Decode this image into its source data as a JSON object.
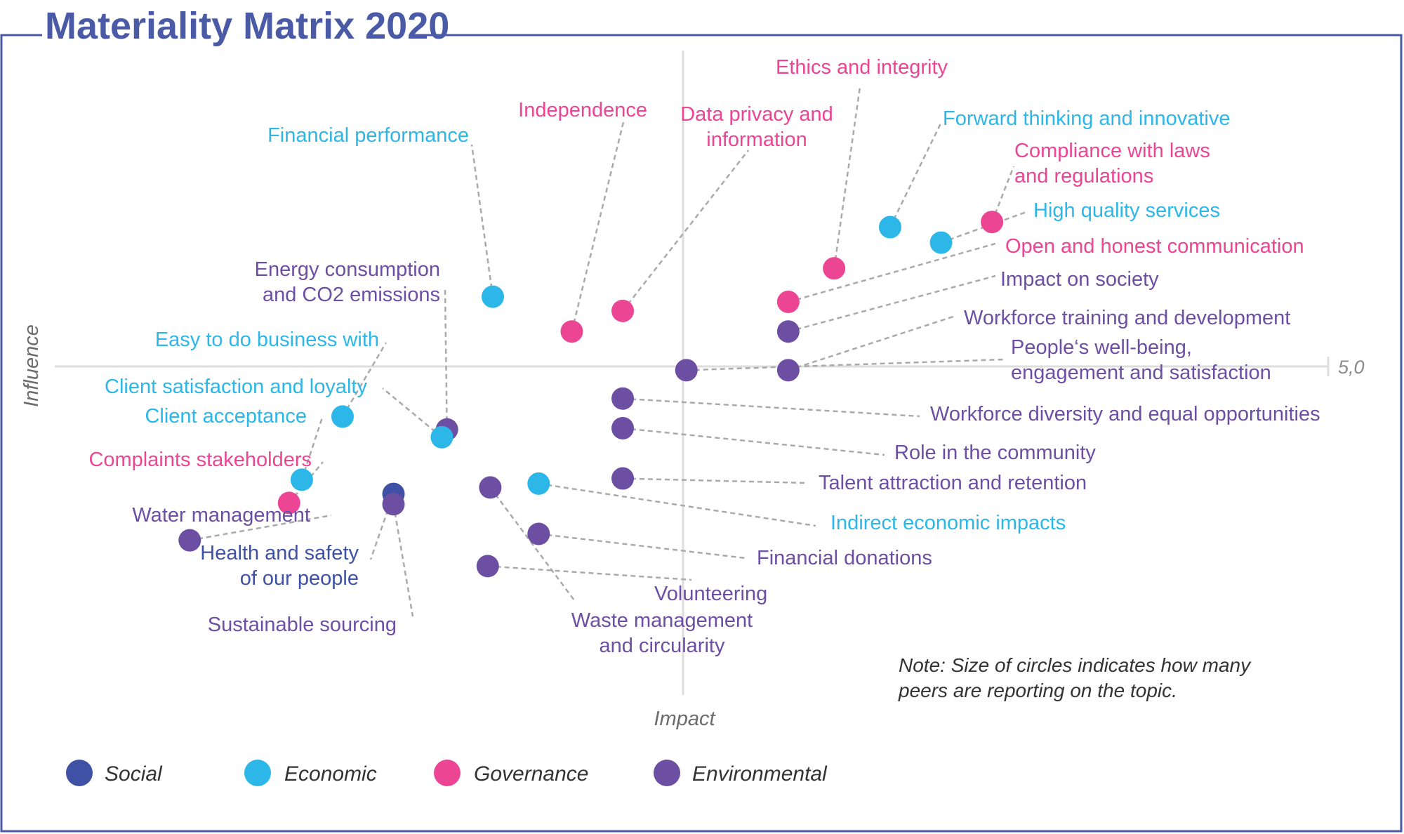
{
  "chart_data": {
    "type": "scatter",
    "title": "Materiality Matrix 2020",
    "xlabel": "Impact",
    "ylabel": "Influence",
    "tick_labels": [
      "5,0"
    ],
    "note": [
      "Note: Size of circles indicates how many",
      "peers are reporting on the topic."
    ],
    "grid": false,
    "legend_position": "bottom-left",
    "colors": {
      "Social": "#3f51a5",
      "Economic": "#2db7e8",
      "Governance": "#ec4594",
      "Environmental": "#6c4ea3"
    },
    "legend": [
      "Social",
      "Economic",
      "Governance",
      "Environmental"
    ],
    "x_range": [
      0,
      5
    ],
    "y_range": [
      0,
      5
    ],
    "points": [
      {
        "name": "Ethics and integrity",
        "category": "Governance",
        "x": 3.06,
        "y": 3.31,
        "label": [
          "Ethics and integrity"
        ]
      },
      {
        "name": "Forward thinking and innovative",
        "category": "Economic",
        "x": 3.28,
        "y": 3.63,
        "label": [
          "Forward thinking and innovative"
        ]
      },
      {
        "name": "Compliance with laws and regulations",
        "category": "Governance",
        "x": 3.68,
        "y": 3.67,
        "label": [
          "Compliance with laws",
          "and regulations"
        ]
      },
      {
        "name": "High quality services",
        "category": "Economic",
        "x": 3.48,
        "y": 3.51,
        "label": [
          "High quality services"
        ]
      },
      {
        "name": "Open and honest communication",
        "category": "Governance",
        "x": 2.88,
        "y": 3.05,
        "label": [
          "Open and honest communication"
        ]
      },
      {
        "name": "Impact on society",
        "category": "Environmental",
        "x": 2.88,
        "y": 2.82,
        "label": [
          "Impact on society"
        ]
      },
      {
        "name": "Workforce training and development",
        "category": "Environmental",
        "x": 2.88,
        "y": 2.52,
        "label": [
          "Workforce training and development"
        ]
      },
      {
        "name": "People's well-being, engagement and satisfaction",
        "category": "Environmental",
        "x": 2.48,
        "y": 2.52,
        "label": [
          "People‘s well-being,",
          "engagement and satisfaction"
        ]
      },
      {
        "name": "Workforce diversity and equal opportunities",
        "category": "Environmental",
        "x": 2.23,
        "y": 2.3,
        "label": [
          "Workforce diversity and equal opportunities"
        ]
      },
      {
        "name": "Role in the community",
        "category": "Environmental",
        "x": 2.23,
        "y": 2.07,
        "label": [
          "Role in the community"
        ]
      },
      {
        "name": "Talent attraction and retention",
        "category": "Environmental",
        "x": 2.23,
        "y": 1.68,
        "label": [
          "Talent attraction and retention"
        ]
      },
      {
        "name": "Indirect economic impacts",
        "category": "Economic",
        "x": 1.9,
        "y": 1.64,
        "label": [
          "Indirect economic impacts"
        ]
      },
      {
        "name": "Financial donations",
        "category": "Environmental",
        "x": 1.9,
        "y": 1.25,
        "label": [
          "Financial donations"
        ]
      },
      {
        "name": "Volunteering",
        "category": "Environmental",
        "x": 1.7,
        "y": 1.0,
        "label": [
          "Volunteering"
        ]
      },
      {
        "name": "Independence",
        "category": "Governance",
        "x": 2.03,
        "y": 2.82,
        "label": [
          "Independence"
        ]
      },
      {
        "name": "Data privacy and information",
        "category": "Governance",
        "x": 2.23,
        "y": 2.98,
        "label": [
          "Data privacy and",
          "information"
        ]
      },
      {
        "name": "Financial performance",
        "category": "Economic",
        "x": 1.72,
        "y": 3.09,
        "label": [
          "Financial performance"
        ]
      },
      {
        "name": "Energy consumption and CO2 emissions",
        "category": "Environmental",
        "x": 1.54,
        "y": 2.06,
        "label": [
          "Energy consumption",
          "and CO2 emissions"
        ]
      },
      {
        "name": "Easy to do business with",
        "category": "Economic",
        "x": 1.13,
        "y": 2.16,
        "label": [
          "Easy to do business with"
        ]
      },
      {
        "name": "Client satisfaction and loyalty",
        "category": "Economic",
        "x": 1.52,
        "y": 2.0,
        "label": [
          "Client satisfaction and loyalty"
        ]
      },
      {
        "name": "Client acceptance",
        "category": "Economic",
        "x": 0.97,
        "y": 1.67,
        "label": [
          "Client acceptance"
        ]
      },
      {
        "name": "Complaints stakeholders",
        "category": "Governance",
        "x": 0.92,
        "y": 1.49,
        "label": [
          "Complaints stakeholders"
        ]
      },
      {
        "name": "Water management",
        "category": "Environmental",
        "x": 0.53,
        "y": 1.2,
        "label": [
          "Water management"
        ]
      },
      {
        "name": "Health and safety of our people",
        "category": "Social",
        "x": 1.33,
        "y": 1.56,
        "label": [
          "Health and safety",
          "of our people"
        ]
      },
      {
        "name": "Sustainable sourcing",
        "category": "Environmental",
        "x": 1.33,
        "y": 1.48,
        "label": [
          "Sustainable sourcing"
        ]
      },
      {
        "name": "Waste management and circularity",
        "category": "Environmental",
        "x": 1.71,
        "y": 1.61,
        "label": [
          "Waste management",
          "and circularity"
        ]
      }
    ]
  }
}
